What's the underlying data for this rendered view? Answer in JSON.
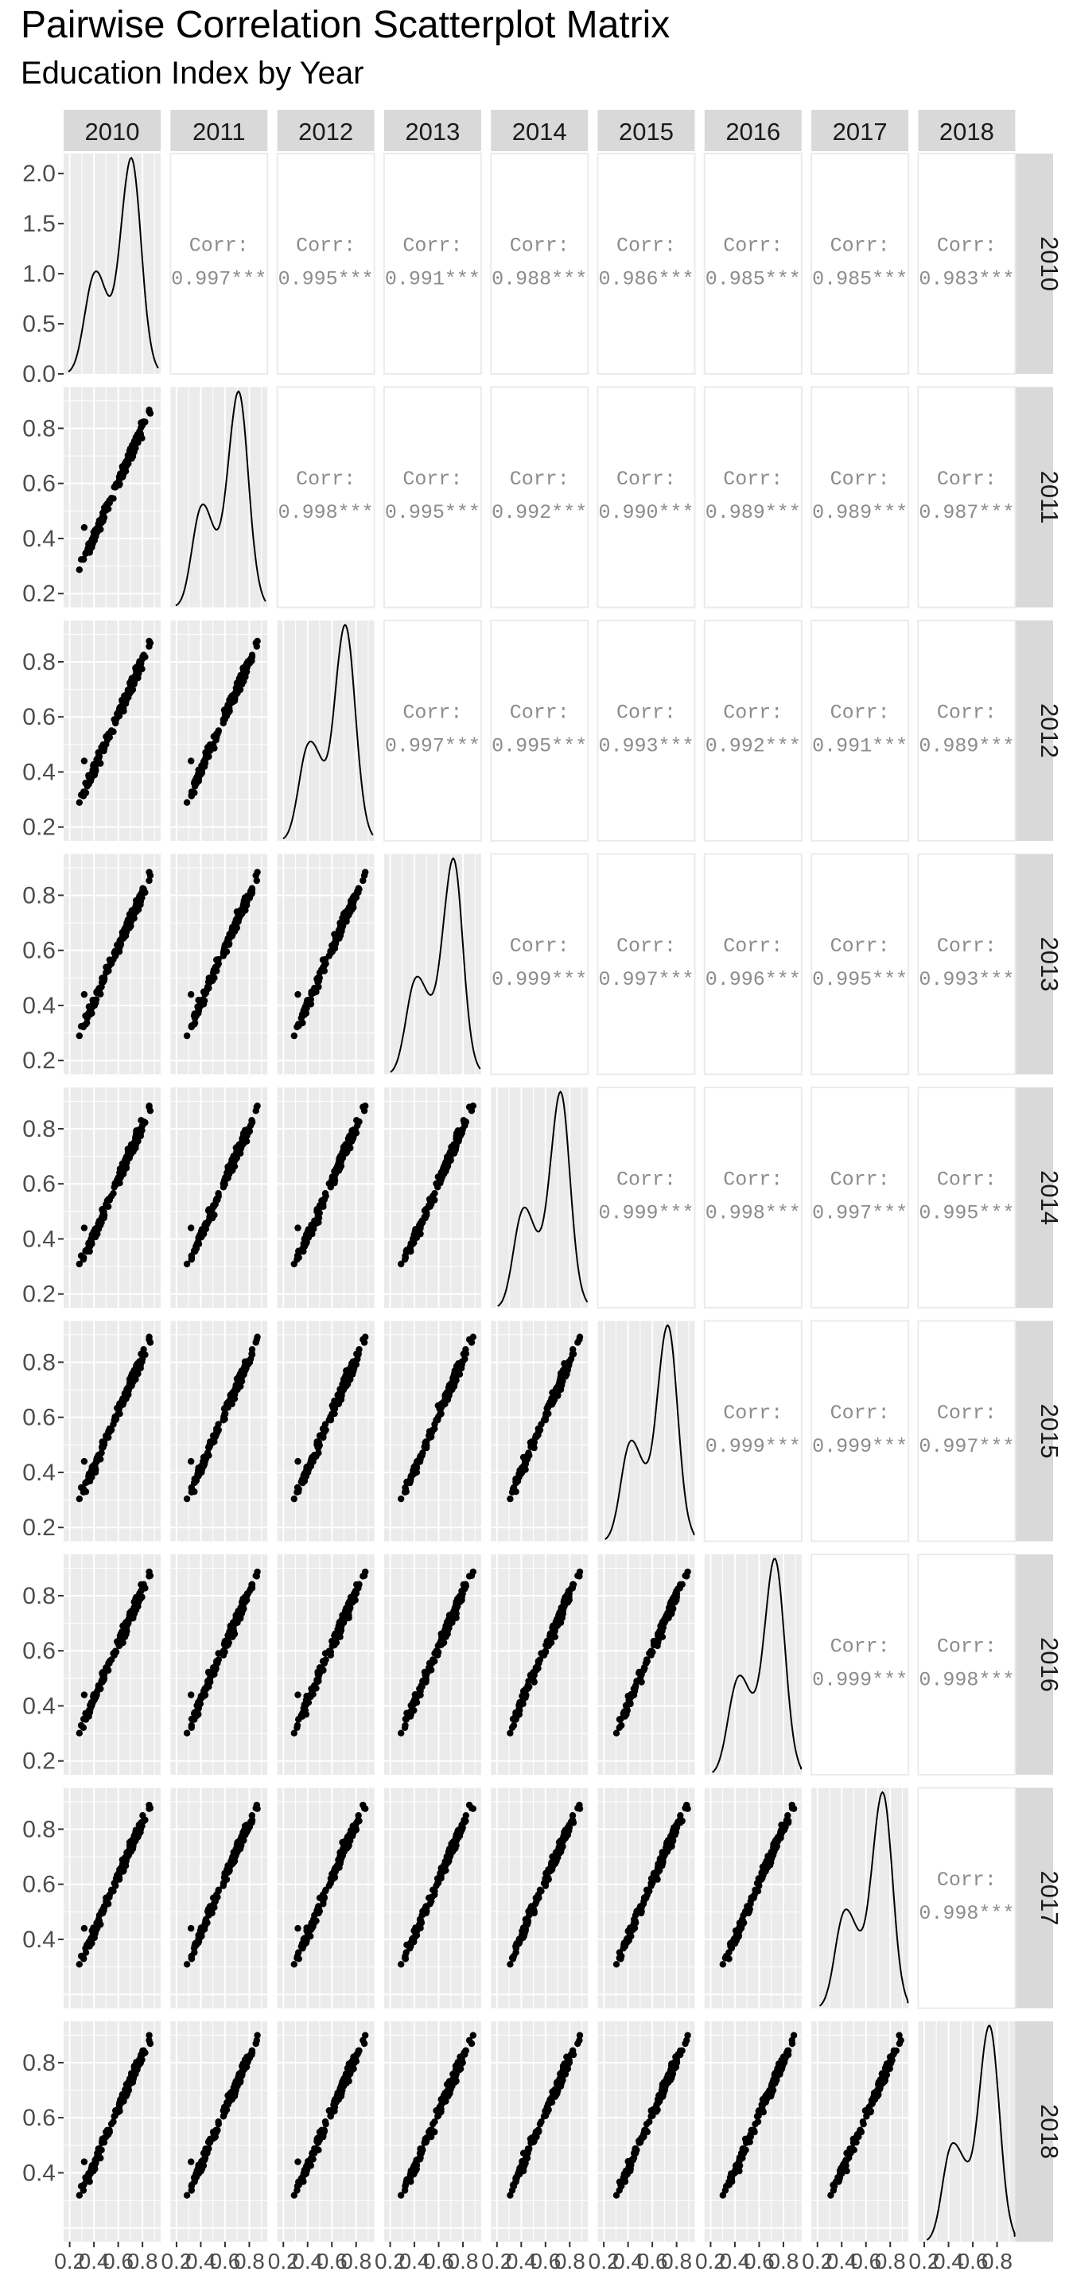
{
  "chart_data": {
    "type": "scatter",
    "title": "Pairwise Correlation Scatterplot Matrix",
    "subtitle": "Education Index by Year",
    "variables": [
      "2010",
      "2011",
      "2012",
      "2013",
      "2014",
      "2015",
      "2016",
      "2017",
      "2018"
    ],
    "diagonal": {
      "type": "density",
      "first_panel_y_ticks": [
        "0.0",
        "0.5",
        "1.0",
        "1.5",
        "2.0"
      ],
      "first_panel_ylim": [
        0,
        2.2
      ],
      "xlim": [
        0.15,
        0.95
      ]
    },
    "scatter_y_ticks": [
      "0.2",
      "0.4",
      "0.6",
      "0.8"
    ],
    "scatter_x_ticks": [
      "0.2",
      "0.4",
      "0.6",
      "0.8"
    ],
    "corr_label": "Corr:",
    "correlations": [
      {
        "row": "2010",
        "col": "2011",
        "value": "0.997***"
      },
      {
        "row": "2010",
        "col": "2012",
        "value": "0.995***"
      },
      {
        "row": "2010",
        "col": "2013",
        "value": "0.991***"
      },
      {
        "row": "2010",
        "col": "2014",
        "value": "0.988***"
      },
      {
        "row": "2010",
        "col": "2015",
        "value": "0.986***"
      },
      {
        "row": "2010",
        "col": "2016",
        "value": "0.985***"
      },
      {
        "row": "2010",
        "col": "2017",
        "value": "0.985***"
      },
      {
        "row": "2010",
        "col": "2018",
        "value": "0.983***"
      },
      {
        "row": "2011",
        "col": "2012",
        "value": "0.998***"
      },
      {
        "row": "2011",
        "col": "2013",
        "value": "0.995***"
      },
      {
        "row": "2011",
        "col": "2014",
        "value": "0.992***"
      },
      {
        "row": "2011",
        "col": "2015",
        "value": "0.990***"
      },
      {
        "row": "2011",
        "col": "2016",
        "value": "0.989***"
      },
      {
        "row": "2011",
        "col": "2017",
        "value": "0.989***"
      },
      {
        "row": "2011",
        "col": "2018",
        "value": "0.987***"
      },
      {
        "row": "2012",
        "col": "2013",
        "value": "0.997***"
      },
      {
        "row": "2012",
        "col": "2014",
        "value": "0.995***"
      },
      {
        "row": "2012",
        "col": "2015",
        "value": "0.993***"
      },
      {
        "row": "2012",
        "col": "2016",
        "value": "0.992***"
      },
      {
        "row": "2012",
        "col": "2017",
        "value": "0.991***"
      },
      {
        "row": "2012",
        "col": "2018",
        "value": "0.989***"
      },
      {
        "row": "2013",
        "col": "2014",
        "value": "0.999***"
      },
      {
        "row": "2013",
        "col": "2015",
        "value": "0.997***"
      },
      {
        "row": "2013",
        "col": "2016",
        "value": "0.996***"
      },
      {
        "row": "2013",
        "col": "2017",
        "value": "0.995***"
      },
      {
        "row": "2013",
        "col": "2018",
        "value": "0.993***"
      },
      {
        "row": "2014",
        "col": "2015",
        "value": "0.999***"
      },
      {
        "row": "2014",
        "col": "2016",
        "value": "0.998***"
      },
      {
        "row": "2014",
        "col": "2017",
        "value": "0.997***"
      },
      {
        "row": "2014",
        "col": "2018",
        "value": "0.995***"
      },
      {
        "row": "2015",
        "col": "2016",
        "value": "0.999***"
      },
      {
        "row": "2015",
        "col": "2017",
        "value": "0.999***"
      },
      {
        "row": "2015",
        "col": "2018",
        "value": "0.997***"
      },
      {
        "row": "2016",
        "col": "2017",
        "value": "0.999***"
      },
      {
        "row": "2016",
        "col": "2018",
        "value": "0.998***"
      },
      {
        "row": "2017",
        "col": "2018",
        "value": "0.998***"
      }
    ],
    "scatter_ylim": [
      0.15,
      0.95
    ],
    "scatter_xlim": [
      0.15,
      0.95
    ],
    "grid": true,
    "colors": {
      "panel_background": "#ebebeb",
      "grid_major": "#ffffff",
      "strip_background": "#d9d9d9",
      "points": "#000000",
      "density_line": "#000000",
      "corr_text": "#8c8c8c"
    }
  }
}
